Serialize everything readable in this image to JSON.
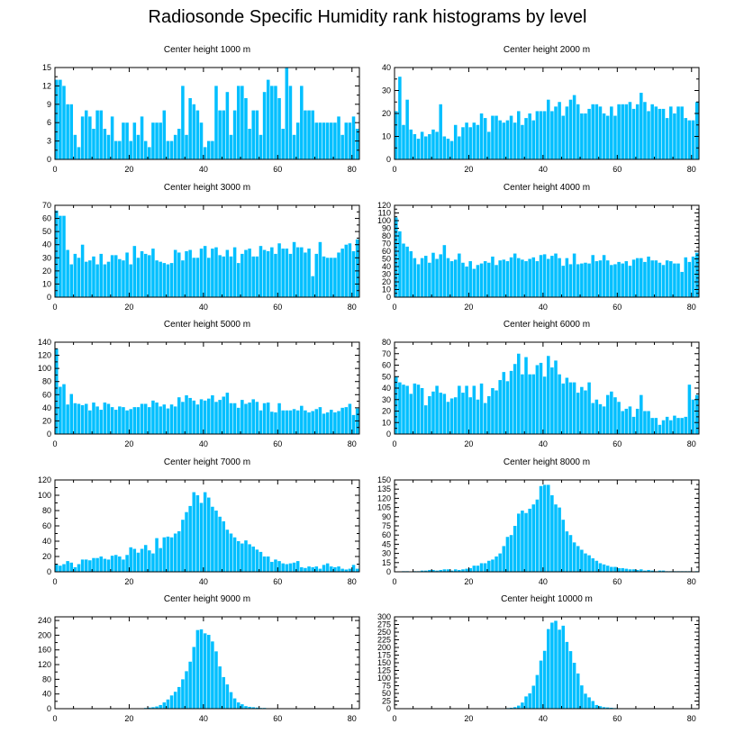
{
  "title": "Radiosonde Specific Humidity rank histograms by level",
  "bar_color": "#00bfff",
  "chart_data": [
    {
      "type": "bar",
      "title": "Center height 1000 m",
      "x_start": 0,
      "xlim": [
        0,
        82
      ],
      "xticks": [
        0,
        20,
        40,
        60,
        80
      ],
      "ylim": [
        0,
        15
      ],
      "yticks": [
        0,
        3,
        6,
        9,
        12,
        15
      ],
      "values": [
        13,
        13,
        12,
        9,
        9,
        4,
        2,
        7,
        8,
        7,
        5,
        8,
        8,
        5,
        4,
        7,
        3,
        3,
        6,
        6,
        3,
        6,
        4,
        7,
        3,
        2,
        6,
        6,
        6,
        8,
        3,
        3,
        4,
        5,
        12,
        4,
        10,
        9,
        8,
        6,
        2,
        3,
        3,
        12,
        8,
        8,
        11,
        4,
        8,
        12,
        12,
        10,
        5,
        8,
        8,
        4,
        11,
        13,
        12,
        12,
        10,
        5,
        15,
        12,
        4,
        6,
        12,
        8,
        8,
        8,
        6,
        6,
        6,
        6,
        6,
        6,
        7,
        4,
        6,
        6,
        7,
        5,
        4,
        5
      ]
    },
    {
      "type": "bar",
      "title": "Center height 2000 m",
      "x_start": 0,
      "xlim": [
        0,
        82
      ],
      "xticks": [
        0,
        20,
        40,
        60,
        80
      ],
      "ylim": [
        0,
        40
      ],
      "yticks": [
        0,
        10,
        20,
        30,
        40
      ],
      "values": [
        21,
        36,
        15,
        26,
        13,
        11,
        9,
        12,
        10,
        11,
        13,
        12,
        24,
        10,
        9,
        8,
        15,
        10,
        14,
        16,
        14,
        16,
        15,
        20,
        18,
        12,
        19,
        19,
        17,
        16,
        17,
        19,
        16,
        21,
        15,
        18,
        20,
        17,
        21,
        21,
        21,
        26,
        21,
        23,
        25,
        19,
        23,
        26,
        28,
        24,
        20,
        20,
        22,
        24,
        24,
        23,
        20,
        19,
        23,
        19,
        24,
        24,
        24,
        25,
        22,
        24,
        29,
        25,
        21,
        24,
        23,
        22,
        22,
        18,
        23,
        20,
        23,
        23,
        18,
        17,
        17,
        25
      ]
    },
    {
      "type": "bar",
      "title": "Center height 3000 m",
      "x_start": 0,
      "xlim": [
        0,
        82
      ],
      "xticks": [
        0,
        20,
        40,
        60,
        80
      ],
      "ylim": [
        0,
        70
      ],
      "yticks": [
        0,
        10,
        20,
        30,
        40,
        50,
        60,
        70
      ],
      "values": [
        66,
        62,
        62,
        36,
        25,
        33,
        30,
        40,
        27,
        28,
        31,
        25,
        33,
        25,
        27,
        32,
        32,
        29,
        28,
        34,
        25,
        39,
        30,
        35,
        33,
        32,
        37,
        28,
        27,
        26,
        25,
        26,
        36,
        34,
        28,
        35,
        36,
        30,
        30,
        37,
        39,
        30,
        37,
        38,
        32,
        31,
        36,
        31,
        38,
        26,
        33,
        36,
        37,
        31,
        31,
        39,
        36,
        35,
        38,
        33,
        41,
        37,
        37,
        33,
        42,
        38,
        38,
        34,
        37,
        16,
        33,
        42,
        31,
        30,
        30,
        30,
        34,
        37,
        40,
        41,
        35,
        44,
        46
      ]
    },
    {
      "type": "bar",
      "title": "Center height 4000 m",
      "x_start": 0,
      "xlim": [
        0,
        82
      ],
      "xticks": [
        0,
        20,
        40,
        60,
        80
      ],
      "ylim": [
        0,
        120
      ],
      "yticks": [
        0,
        10,
        20,
        30,
        40,
        50,
        60,
        70,
        80,
        90,
        100,
        110,
        120
      ],
      "values": [
        104,
        86,
        70,
        66,
        60,
        51,
        43,
        51,
        54,
        45,
        58,
        50,
        56,
        68,
        51,
        47,
        49,
        57,
        45,
        40,
        47,
        37,
        42,
        44,
        47,
        45,
        53,
        42,
        48,
        49,
        47,
        52,
        57,
        51,
        49,
        47,
        50,
        52,
        47,
        55,
        56,
        50,
        54,
        57,
        51,
        41,
        51,
        43,
        57,
        43,
        44,
        45,
        44,
        55,
        47,
        48,
        55,
        48,
        42,
        43,
        46,
        44,
        47,
        41,
        49,
        51,
        51,
        46,
        53,
        48,
        48,
        45,
        42,
        48,
        47,
        44,
        44,
        33,
        52,
        46,
        53,
        58
      ]
    },
    {
      "type": "bar",
      "title": "Center height 5000 m",
      "x_start": 0,
      "xlim": [
        0,
        82
      ],
      "xticks": [
        0,
        20,
        40,
        60,
        80
      ],
      "ylim": [
        0,
        140
      ],
      "yticks": [
        0,
        20,
        40,
        60,
        80,
        100,
        120,
        140
      ],
      "values": [
        130,
        72,
        76,
        45,
        61,
        47,
        46,
        44,
        46,
        36,
        48,
        42,
        37,
        48,
        46,
        41,
        37,
        42,
        41,
        36,
        38,
        41,
        41,
        46,
        46,
        41,
        51,
        48,
        42,
        45,
        39,
        45,
        42,
        56,
        49,
        59,
        55,
        51,
        45,
        53,
        51,
        54,
        59,
        49,
        52,
        57,
        63,
        47,
        47,
        40,
        52,
        46,
        48,
        53,
        49,
        36,
        47,
        48,
        34,
        33,
        47,
        36,
        36,
        36,
        38,
        36,
        43,
        36,
        33,
        35,
        38,
        41,
        31,
        33,
        37,
        33,
        35,
        40,
        41,
        46,
        29,
        39
      ]
    },
    {
      "type": "bar",
      "title": "Center height 6000 m",
      "x_start": 0,
      "xlim": [
        0,
        82
      ],
      "xticks": [
        0,
        20,
        40,
        60,
        80
      ],
      "ylim": [
        0,
        80
      ],
      "yticks": [
        0,
        10,
        20,
        30,
        40,
        50,
        60,
        70,
        80
      ],
      "values": [
        50,
        45,
        43,
        42,
        35,
        44,
        43,
        40,
        25,
        33,
        37,
        42,
        36,
        35,
        28,
        31,
        32,
        42,
        36,
        42,
        32,
        42,
        30,
        44,
        27,
        33,
        40,
        38,
        47,
        54,
        46,
        55,
        61,
        70,
        52,
        67,
        52,
        52,
        60,
        62,
        50,
        68,
        58,
        64,
        52,
        44,
        49,
        45,
        45,
        36,
        41,
        38,
        45,
        27,
        30,
        26,
        24,
        34,
        37,
        32,
        28,
        20,
        22,
        24,
        15,
        22,
        34,
        20,
        20,
        14,
        14,
        8,
        12,
        15,
        12,
        16,
        14,
        14,
        15,
        43,
        30,
        34,
        36
      ]
    },
    {
      "type": "bar",
      "title": "Center height 7000 m",
      "x_start": 0,
      "xlim": [
        0,
        82
      ],
      "xticks": [
        0,
        20,
        40,
        60,
        80
      ],
      "ylim": [
        0,
        120
      ],
      "yticks": [
        0,
        20,
        40,
        60,
        80,
        100,
        120
      ],
      "values": [
        10,
        8,
        10,
        14,
        12,
        6,
        10,
        16,
        16,
        15,
        18,
        18,
        20,
        17,
        16,
        21,
        22,
        20,
        16,
        22,
        32,
        30,
        25,
        30,
        35,
        28,
        24,
        44,
        31,
        45,
        46,
        45,
        50,
        53,
        68,
        78,
        86,
        104,
        100,
        90,
        104,
        97,
        85,
        80,
        72,
        66,
        55,
        50,
        45,
        40,
        37,
        41,
        36,
        33,
        29,
        26,
        20,
        20,
        13,
        16,
        14,
        11,
        10,
        11,
        12,
        14,
        6,
        5,
        7,
        6,
        7,
        4,
        9,
        11,
        7,
        6,
        7,
        4,
        3,
        4,
        9,
        4,
        2
      ]
    },
    {
      "type": "bar",
      "title": "Center height 8000 m",
      "x_start": 0,
      "xlim": [
        0,
        82
      ],
      "xticks": [
        0,
        20,
        40,
        60,
        80
      ],
      "ylim": [
        0,
        150
      ],
      "yticks": [
        0,
        15,
        30,
        45,
        60,
        75,
        90,
        105,
        120,
        135,
        150
      ],
      "values": [
        0,
        0,
        1,
        1,
        0,
        1,
        1,
        2,
        2,
        3,
        3,
        2,
        3,
        4,
        4,
        2,
        4,
        3,
        4,
        5,
        6,
        10,
        10,
        14,
        14,
        18,
        20,
        25,
        30,
        42,
        57,
        60,
        75,
        95,
        100,
        96,
        103,
        110,
        118,
        140,
        142,
        142,
        125,
        110,
        105,
        85,
        66,
        60,
        48,
        42,
        36,
        30,
        27,
        22,
        18,
        14,
        12,
        10,
        8,
        8,
        6,
        6,
        5,
        4,
        4,
        3,
        4,
        2,
        3,
        2,
        1,
        2,
        2,
        1,
        1,
        1,
        1,
        1,
        1,
        1,
        0,
        1,
        0
      ]
    },
    {
      "type": "bar",
      "title": "Center height 9000 m",
      "x_start": 0,
      "xlim": [
        0,
        82
      ],
      "xticks": [
        0,
        20,
        40,
        60,
        80
      ],
      "ylim": [
        0,
        250
      ],
      "yticks": [
        0,
        40,
        80,
        120,
        160,
        200,
        240
      ],
      "values": [
        0,
        0,
        0,
        0,
        0,
        0,
        0,
        0,
        0,
        0,
        0,
        0,
        0,
        0,
        0,
        0,
        0,
        0,
        0,
        0,
        0,
        1,
        1,
        1,
        2,
        3,
        4,
        6,
        10,
        17,
        25,
        36,
        46,
        59,
        80,
        102,
        128,
        168,
        214,
        216,
        205,
        201,
        183,
        156,
        115,
        86,
        66,
        45,
        28,
        17,
        12,
        7,
        5,
        4,
        3,
        2,
        2,
        1,
        1,
        1,
        1,
        1,
        0,
        0,
        0,
        0,
        0,
        0,
        0,
        0,
        0,
        0,
        0,
        0,
        0,
        0,
        0,
        0,
        0,
        0,
        0,
        0,
        0
      ]
    },
    {
      "type": "bar",
      "title": "Center height 10000 m",
      "x_start": 0,
      "xlim": [
        0,
        82
      ],
      "xticks": [
        0,
        20,
        40,
        60,
        80
      ],
      "ylim": [
        0,
        300
      ],
      "yticks": [
        0,
        25,
        50,
        75,
        100,
        125,
        150,
        175,
        200,
        225,
        250,
        275,
        300
      ],
      "values": [
        0,
        0,
        0,
        0,
        0,
        0,
        0,
        0,
        0,
        0,
        0,
        0,
        0,
        0,
        0,
        0,
        0,
        0,
        0,
        0,
        0,
        0,
        0,
        0,
        0,
        0,
        0,
        0,
        0,
        1,
        2,
        3,
        5,
        10,
        20,
        40,
        50,
        75,
        110,
        157,
        189,
        260,
        281,
        287,
        258,
        271,
        218,
        188,
        150,
        115,
        76,
        49,
        37,
        25,
        12,
        8,
        5,
        4,
        3,
        2,
        1,
        1,
        1,
        0,
        0,
        0,
        0,
        0,
        0,
        0,
        0,
        0,
        0,
        0,
        0,
        0,
        0,
        0,
        0,
        0,
        0,
        0,
        0
      ]
    }
  ]
}
